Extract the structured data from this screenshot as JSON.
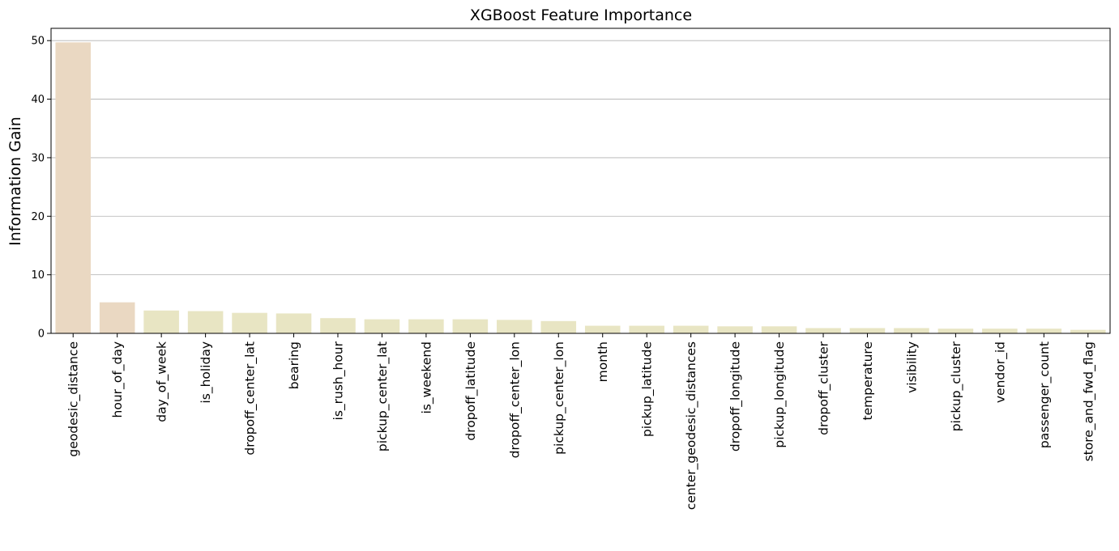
{
  "chart_data": {
    "type": "bar",
    "title": "XGBoost Feature Importance",
    "xlabel": "",
    "ylabel": "Information Gain",
    "ylim": [
      0,
      52.1
    ],
    "yticks": [
      0,
      10,
      20,
      30,
      40,
      50
    ],
    "grid": "y",
    "categories": [
      "geodesic_distance",
      "hour_of_day",
      "day_of_week",
      "is_holiday",
      "dropoff_center_lat",
      "bearing",
      "is_rush_hour",
      "pickup_center_lat",
      "is_weekend",
      "dropoff_latitude",
      "dropoff_center_lon",
      "pickup_center_lon",
      "month",
      "pickup_latitude",
      "center_geodesic_distances",
      "dropoff_longitude",
      "pickup_longitude",
      "dropoff_cluster",
      "temperature",
      "visibility",
      "pickup_cluster",
      "vendor_id",
      "passenger_count",
      "store_and_fwd_flag"
    ],
    "values": [
      49.7,
      5.3,
      3.9,
      3.8,
      3.5,
      3.4,
      2.6,
      2.4,
      2.4,
      2.4,
      2.3,
      2.1,
      1.3,
      1.3,
      1.3,
      1.2,
      1.2,
      0.9,
      0.9,
      0.9,
      0.8,
      0.8,
      0.8,
      0.6
    ],
    "colors": [
      "#ead8c2",
      "#ead8c2",
      "#e8e5c3",
      "#e8e5c3",
      "#e8e5c3",
      "#e8e5c3",
      "#e8e5c3",
      "#e8e5c3",
      "#e8e5c3",
      "#e8e5c3",
      "#e8e5c3",
      "#e8e5c3",
      "#e8e5c3",
      "#e8e5c3",
      "#e8e5c3",
      "#e8e5c3",
      "#e8e5c3",
      "#e8e5c3",
      "#e8e5c3",
      "#e8e5c3",
      "#e8e5c3",
      "#e8e5c3",
      "#e8e5c3",
      "#e8e5c3"
    ],
    "grid_color": "#b0b0b0",
    "axis_color": "#000000"
  }
}
